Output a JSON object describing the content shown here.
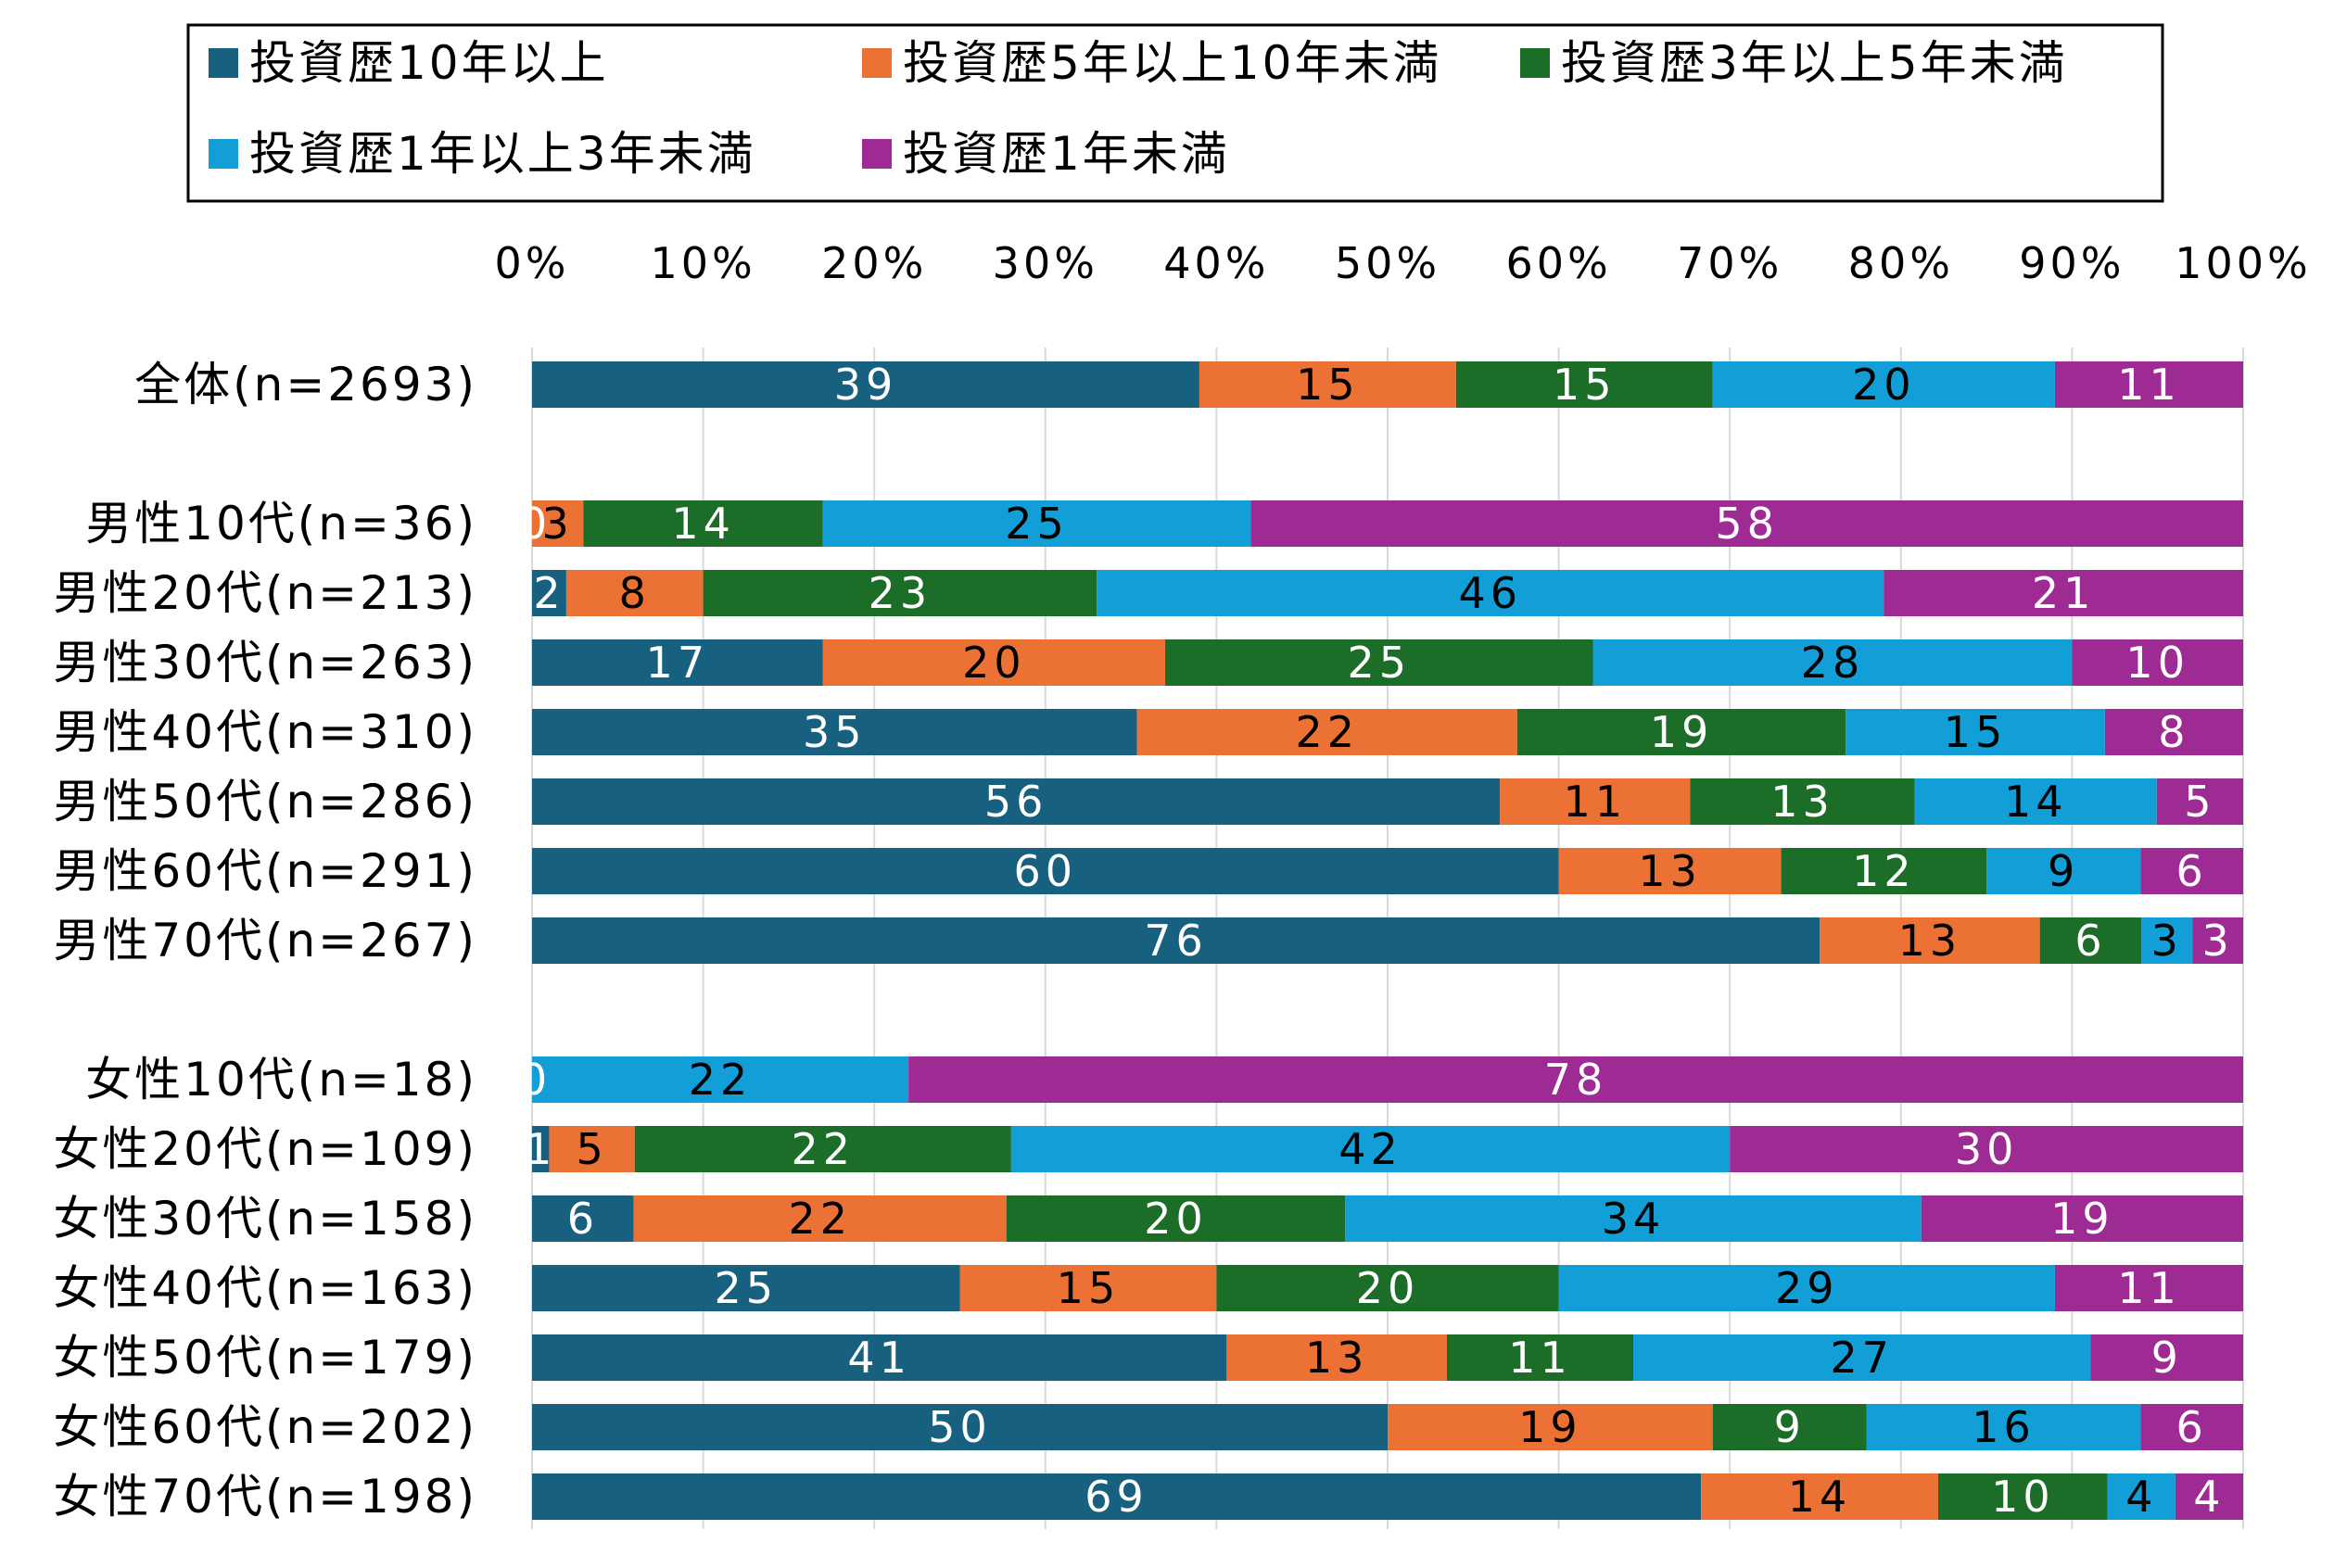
{
  "chart_data": {
    "type": "bar",
    "orientation": "horizontal",
    "stacked": "percent",
    "title": "",
    "xlabel": "",
    "ylabel": "",
    "xlim": [
      0,
      100
    ],
    "x_ticks": [
      "0%",
      "10%",
      "20%",
      "30%",
      "40%",
      "50%",
      "60%",
      "70%",
      "80%",
      "90%",
      "100%"
    ],
    "grid": true,
    "legend_position": "top",
    "categories": [
      "全体(n=2693)",
      "男性10代(n=36)",
      "男性20代(n=213)",
      "男性30代(n=263)",
      "男性40代(n=310)",
      "男性50代(n=286)",
      "男性60代(n=291)",
      "男性70代(n=267)",
      "女性10代(n=18)",
      "女性20代(n=109)",
      "女性30代(n=158)",
      "女性40代(n=163)",
      "女性50代(n=179)",
      "女性60代(n=202)",
      "女性70代(n=198)"
    ],
    "series": [
      {
        "name": "投資歴10年以上",
        "color": "#17607f",
        "label_color": "#ffffff",
        "values": [
          39,
          0,
          2,
          17,
          35,
          56,
          60,
          76,
          0,
          1,
          6,
          25,
          41,
          50,
          69
        ]
      },
      {
        "name": "投資歴5年以上10年未満",
        "color": "#eb7234",
        "label_color": "#000000",
        "values": [
          15,
          3,
          8,
          20,
          22,
          11,
          13,
          13,
          0,
          5,
          22,
          15,
          13,
          19,
          14
        ]
      },
      {
        "name": "投資歴3年以上5年未満",
        "color": "#1c6d27",
        "label_color": "#ffffff",
        "values": [
          15,
          14,
          23,
          25,
          19,
          13,
          12,
          6,
          0,
          22,
          20,
          20,
          11,
          9,
          10
        ]
      },
      {
        "name": "投資歴1年以上3年未満",
        "color": "#129fd8",
        "label_color": "#000000",
        "values": [
          20,
          25,
          46,
          28,
          15,
          14,
          9,
          3,
          22,
          42,
          34,
          29,
          27,
          16,
          4
        ]
      },
      {
        "name": "投資歴1年未満",
        "color": "#9e2a93",
        "label_color": "#ffffff",
        "values": [
          11,
          58,
          21,
          10,
          8,
          5,
          6,
          3,
          78,
          30,
          19,
          11,
          9,
          6,
          4
        ]
      }
    ]
  }
}
